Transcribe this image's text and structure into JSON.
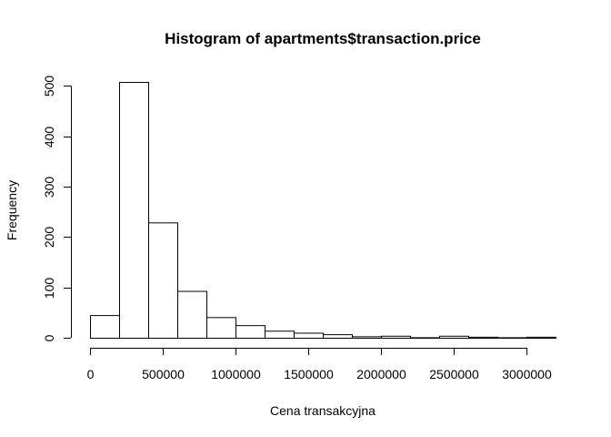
{
  "chart_data": {
    "type": "bar",
    "title": "Histogram of apartments$transaction.price",
    "xlabel": "Cena transakcyjna",
    "ylabel": "Frequency",
    "bin_width": 200000,
    "bins": [
      {
        "start": 0,
        "end": 200000,
        "count": 45
      },
      {
        "start": 200000,
        "end": 400000,
        "count": 508
      },
      {
        "start": 400000,
        "end": 600000,
        "count": 229
      },
      {
        "start": 600000,
        "end": 800000,
        "count": 93
      },
      {
        "start": 800000,
        "end": 1000000,
        "count": 41
      },
      {
        "start": 1000000,
        "end": 1200000,
        "count": 25
      },
      {
        "start": 1200000,
        "end": 1400000,
        "count": 14
      },
      {
        "start": 1400000,
        "end": 1600000,
        "count": 10
      },
      {
        "start": 1600000,
        "end": 1800000,
        "count": 7
      },
      {
        "start": 1800000,
        "end": 2000000,
        "count": 3
      },
      {
        "start": 2000000,
        "end": 2200000,
        "count": 4
      },
      {
        "start": 2200000,
        "end": 2400000,
        "count": 1
      },
      {
        "start": 2400000,
        "end": 2600000,
        "count": 4
      },
      {
        "start": 2600000,
        "end": 2800000,
        "count": 2
      },
      {
        "start": 2800000,
        "end": 3000000,
        "count": 1
      },
      {
        "start": 3000000,
        "end": 3200000,
        "count": 2
      }
    ],
    "xlim": [
      0,
      3200000
    ],
    "ylim": [
      0,
      508
    ],
    "x_ticks": [
      0,
      500000,
      1000000,
      1500000,
      2000000,
      2500000,
      3000000
    ],
    "x_tick_labels": [
      "0",
      "500000",
      "1000000",
      "1500000",
      "2000000",
      "2500000",
      "3000000"
    ],
    "y_ticks": [
      0,
      100,
      200,
      300,
      400,
      500
    ],
    "y_tick_labels": [
      "0",
      "100",
      "200",
      "300",
      "400",
      "500"
    ],
    "grid": false,
    "legend": "none"
  }
}
